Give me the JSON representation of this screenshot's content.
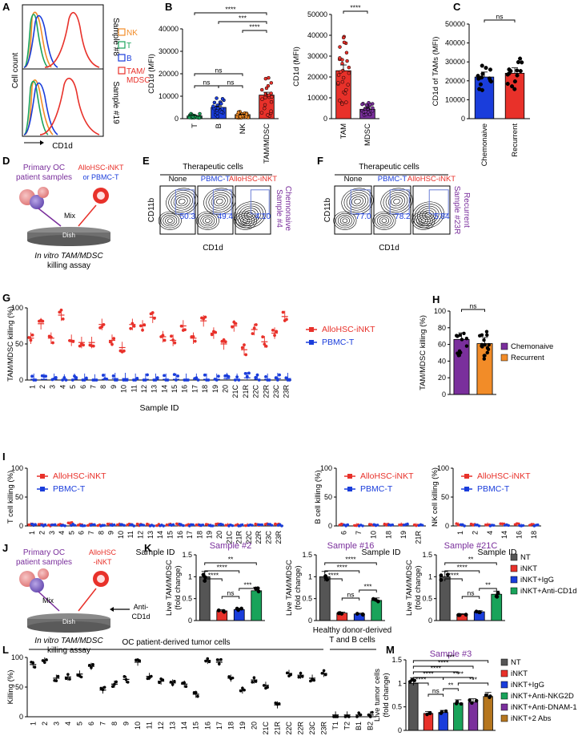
{
  "colors": {
    "red": "#e8312a",
    "blue": "#1a3ddb",
    "green": "#19a35a",
    "orange": "#f28c28",
    "gray": "#555555",
    "purple": "#7a2f9c",
    "brown": "#b5761f",
    "dark": "#333333"
  },
  "chart_data": [
    {
      "id": "A",
      "type": "histogram-overlay",
      "panel_label": "A",
      "xlabel": "CD1d",
      "ylabel": "Cell count",
      "sample_labels": [
        "Sample #8",
        "Sample #19"
      ],
      "legend": [
        {
          "label": "NK",
          "color": "#f28c28"
        },
        {
          "label": "T",
          "color": "#19a35a"
        },
        {
          "label": "B",
          "color": "#1a3ddb"
        },
        {
          "label": "TAM/",
          "label2": "MDSC",
          "color": "#e8312a"
        }
      ]
    },
    {
      "id": "B1",
      "type": "bar",
      "panel_label": "B",
      "ylabel": "CD1d (MFI)",
      "ylim": [
        0,
        40000
      ],
      "yticks": [
        0,
        10000,
        20000,
        30000,
        40000
      ],
      "categories": [
        "T",
        "B",
        "NK",
        "TAM/MDSC"
      ],
      "values": [
        1200,
        5000,
        1800,
        10500
      ],
      "bar_colors": [
        "#19a35a",
        "#1a3ddb",
        "#f28c28",
        "#e8312a"
      ],
      "significance": [
        {
          "from": "T",
          "to": "B",
          "label": "ns"
        },
        {
          "from": "B",
          "to": "NK",
          "label": "ns"
        },
        {
          "from": "T",
          "to": "NK",
          "label": "ns"
        },
        {
          "from": "NK",
          "to": "TAM/MDSC",
          "label": "****"
        },
        {
          "from": "B",
          "to": "TAM/MDSC",
          "label": "***"
        },
        {
          "from": "T",
          "to": "TAM/MDSC",
          "label": "****"
        }
      ]
    },
    {
      "id": "B2",
      "type": "bar",
      "ylabel": "CD1d (MFI)",
      "ylim": [
        0,
        50000
      ],
      "yticks": [
        0,
        10000,
        20000,
        30000,
        40000,
        50000
      ],
      "categories": [
        "TAM",
        "MDSC"
      ],
      "values": [
        23000,
        4500
      ],
      "bar_colors": [
        "#e8312a",
        "#7a2f9c"
      ],
      "significance": [
        {
          "from": "TAM",
          "to": "MDSC",
          "label": "****"
        }
      ]
    },
    {
      "id": "C",
      "type": "bar",
      "panel_label": "C",
      "ylabel": "CD1d of TAMs (MFI)",
      "ylim": [
        0,
        50000
      ],
      "yticks": [
        0,
        10000,
        20000,
        30000,
        40000,
        50000
      ],
      "categories": [
        "Chemonaive",
        "Recurrent"
      ],
      "values": [
        22000,
        24000
      ],
      "bar_colors": [
        "#1a3ddb",
        "#e8312a"
      ],
      "significance": [
        {
          "from": "Chemonaive",
          "to": "Recurrent",
          "label": "ns"
        }
      ]
    },
    {
      "id": "G",
      "type": "scatter",
      "panel_label": "G",
      "ylabel": "TAM/MDSC killing (%)",
      "xlabel": "Sample ID",
      "ylim": [
        0,
        100
      ],
      "yticks": [
        0,
        50,
        100
      ],
      "categories": [
        "1",
        "2",
        "3",
        "4",
        "5",
        "6",
        "7",
        "8",
        "9",
        "10",
        "11",
        "12",
        "13",
        "14",
        "15",
        "16",
        "17",
        "18",
        "19",
        "20",
        "21C",
        "21R",
        "22C",
        "22R",
        "23C",
        "23R"
      ],
      "series": [
        {
          "name": "AlloHSC-iNKT",
          "color": "#e8312a",
          "values": [
            58,
            78,
            58,
            90,
            55,
            52,
            52,
            77,
            55,
            45,
            77,
            75,
            87,
            60,
            55,
            75,
            58,
            82,
            65,
            50,
            75,
            42,
            70,
            53,
            65,
            88
          ]
        },
        {
          "name": "PBMC-T",
          "color": "#1a3ddb",
          "values": [
            1,
            1,
            1,
            0,
            1,
            1,
            0,
            1,
            2,
            2,
            1,
            1,
            1,
            1,
            1,
            1,
            1,
            1,
            1,
            2,
            1,
            3,
            1,
            1,
            2,
            2
          ]
        }
      ]
    },
    {
      "id": "H",
      "type": "bar",
      "panel_label": "H",
      "ylabel": "TAM/MDSC killing (%)",
      "ylim": [
        0,
        100
      ],
      "yticks": [
        0,
        20,
        40,
        60,
        80,
        100
      ],
      "categories": [
        "Chemonaive",
        "Recurrent"
      ],
      "values": [
        66,
        61
      ],
      "bar_colors": [
        "#7a2f9c",
        "#f28c28"
      ],
      "legend": [
        "Chemonaive",
        "Recurrent"
      ],
      "significance": [
        {
          "from": "Chemonaive",
          "to": "Recurrent",
          "label": "ns"
        }
      ]
    },
    {
      "id": "I1",
      "type": "scatter",
      "panel_label": "I",
      "ylabel": "T cell killing (%)",
      "xlabel": "Sample ID",
      "ylim": [
        0,
        100
      ],
      "yticks": [
        0,
        50,
        100
      ],
      "categories": [
        "1",
        "2",
        "3",
        "4",
        "5",
        "6",
        "7",
        "8",
        "9",
        "10",
        "11",
        "12",
        "13",
        "14",
        "15",
        "16",
        "17",
        "18",
        "19",
        "20",
        "21C",
        "21R",
        "22C",
        "22R",
        "23C",
        "23R"
      ],
      "series": [
        {
          "name": "AlloHSC-iNKT",
          "color": "#e8312a",
          "values": [
            3,
            2,
            1,
            2,
            5,
            2,
            2,
            1,
            3,
            3,
            2,
            2,
            2,
            2,
            2,
            3,
            2,
            2,
            2,
            3,
            2,
            2,
            2,
            2,
            3,
            2
          ]
        },
        {
          "name": "PBMC-T",
          "color": "#1a3ddb",
          "values": [
            2,
            1,
            1,
            1,
            2,
            1,
            1,
            1,
            2,
            2,
            1,
            1,
            1,
            1,
            1,
            2,
            1,
            1,
            1,
            2,
            1,
            1,
            1,
            1,
            2,
            1
          ]
        }
      ]
    },
    {
      "id": "I2",
      "type": "scatter",
      "ylabel": "B cell killing (%)",
      "xlabel": "Sample ID",
      "ylim": [
        0,
        100
      ],
      "yticks": [
        0,
        50,
        100
      ],
      "categories": [
        "6",
        "7",
        "10",
        "18",
        "19",
        "21R"
      ],
      "series": [
        {
          "name": "AlloHSC-iNKT",
          "color": "#e8312a",
          "values": [
            2,
            2,
            2,
            2,
            3,
            2
          ]
        },
        {
          "name": "PBMC-T",
          "color": "#1a3ddb",
          "values": [
            1,
            1,
            1,
            1,
            2,
            1
          ]
        }
      ]
    },
    {
      "id": "I3",
      "type": "scatter",
      "ylabel": "NK cell killing (%)",
      "xlabel": "Sample ID",
      "ylim": [
        0,
        100
      ],
      "yticks": [
        0,
        50,
        100
      ],
      "categories": [
        "1",
        "2",
        "4",
        "14",
        "16",
        "18"
      ],
      "series": [
        {
          "name": "AlloHSC-iNKT",
          "color": "#e8312a",
          "values": [
            3,
            2,
            3,
            3,
            3,
            2
          ]
        },
        {
          "name": "PBMC-T",
          "color": "#1a3ddb",
          "values": [
            1,
            1,
            1,
            1,
            1,
            1
          ]
        }
      ]
    },
    {
      "id": "K1",
      "type": "bar",
      "panel_label": "K",
      "title": "Sample #2",
      "ylabel": "Live TAM/MDSC",
      "ylabel2": "(fold change)",
      "ylim": [
        0,
        1.5
      ],
      "yticks": [
        0.0,
        0.5,
        1.0,
        1.5
      ],
      "categories": [
        "NT",
        "iNKT",
        "iNKT+IgG",
        "iNKT+Anti-CD1d"
      ],
      "values": [
        1.0,
        0.22,
        0.25,
        0.68
      ],
      "bar_colors": [
        "#555555",
        "#e8312a",
        "#1a3ddb",
        "#19a35a"
      ],
      "significance": [
        {
          "from": "NT",
          "to": "iNKT",
          "label": "****"
        },
        {
          "from": "NT",
          "to": "iNKT+IgG",
          "label": "****"
        },
        {
          "from": "NT",
          "to": "iNKT+Anti-CD1d",
          "label": "**"
        },
        {
          "from": "iNKT",
          "to": "iNKT+IgG",
          "label": "ns"
        },
        {
          "from": "iNKT+IgG",
          "to": "iNKT+Anti-CD1d",
          "label": "***"
        }
      ]
    },
    {
      "id": "K2",
      "type": "bar",
      "title": "Sample #16",
      "ylabel": "Live TAM/MDSC",
      "ylabel2": "(fold change)",
      "ylim": [
        0,
        1.5
      ],
      "yticks": [
        0.0,
        0.5,
        1.0,
        1.5
      ],
      "categories": [
        "NT",
        "iNKT",
        "iNKT+IgG",
        "iNKT+Anti-CD1d"
      ],
      "values": [
        1.0,
        0.17,
        0.15,
        0.46
      ],
      "bar_colors": [
        "#555555",
        "#e8312a",
        "#1a3ddb",
        "#19a35a"
      ],
      "significance": [
        {
          "from": "NT",
          "to": "iNKT",
          "label": "****"
        },
        {
          "from": "NT",
          "to": "iNKT+IgG",
          "label": "****"
        },
        {
          "from": "NT",
          "to": "iNKT+Anti-CD1d",
          "label": "****"
        },
        {
          "from": "iNKT",
          "to": "iNKT+IgG",
          "label": "ns"
        },
        {
          "from": "iNKT+IgG",
          "to": "iNKT+Anti-CD1d",
          "label": "***"
        }
      ]
    },
    {
      "id": "K3",
      "type": "bar",
      "title": "Sample #21C",
      "ylabel": "Live TAM/MDSC",
      "ylabel2": "(fold change)",
      "ylim": [
        0,
        1.5
      ],
      "yticks": [
        0.0,
        0.5,
        1.0,
        1.5
      ],
      "categories": [
        "NT",
        "iNKT",
        "iNKT+IgG",
        "iNKT+Anti-CD1d"
      ],
      "values": [
        1.0,
        0.14,
        0.2,
        0.6
      ],
      "bar_colors": [
        "#555555",
        "#e8312a",
        "#1a3ddb",
        "#19a35a"
      ],
      "legend": [
        "NT",
        "iNKT",
        "iNKT+IgG",
        "iNKT+Anti-CD1d"
      ],
      "significance": [
        {
          "from": "NT",
          "to": "iNKT",
          "label": "****"
        },
        {
          "from": "NT",
          "to": "iNKT+IgG",
          "label": "****"
        },
        {
          "from": "NT",
          "to": "iNKT+Anti-CD1d",
          "label": "**"
        },
        {
          "from": "iNKT",
          "to": "iNKT+IgG",
          "label": "ns"
        },
        {
          "from": "iNKT+IgG",
          "to": "iNKT+Anti-CD1d",
          "label": "**"
        }
      ]
    },
    {
      "id": "L",
      "type": "scatter",
      "panel_label": "L",
      "ylabel": "Killing (%)",
      "ylim": [
        0,
        100
      ],
      "yticks": [
        0,
        50,
        100
      ],
      "group1_label": "OC patient-derived tumor cells",
      "group2_label": "Healthy donor-derived",
      "group2_label2": "T and B cells",
      "categories": [
        "1",
        "2",
        "3",
        "4",
        "5",
        "6",
        "7",
        "8",
        "9",
        "10",
        "11",
        "12",
        "13",
        "14",
        "15",
        "16",
        "17",
        "18",
        "19",
        "20",
        "21C",
        "21R",
        "22C",
        "22R",
        "23C",
        "23R",
        "T1",
        "T2",
        "B1",
        "B2"
      ],
      "values": [
        88,
        95,
        65,
        67,
        72,
        85,
        45,
        55,
        63,
        92,
        68,
        60,
        57,
        55,
        38,
        95,
        92,
        65,
        45,
        62,
        53,
        20,
        73,
        70,
        65,
        73,
        3,
        3,
        3,
        3
      ],
      "color": "#000000"
    },
    {
      "id": "M",
      "type": "bar",
      "panel_label": "M",
      "title": "Sample #3",
      "ylabel": "Live tumor cells",
      "ylabel2": "(fold change)",
      "ylim": [
        0,
        1.5
      ],
      "yticks": [
        0.0,
        0.5,
        1.0,
        1.5
      ],
      "categories": [
        "NT",
        "iNKT",
        "iNKT+IgG",
        "iNKT+Anti-NKG2D",
        "iNKT+Anti-DNAM-1",
        "iNKT+2 Abs"
      ],
      "values": [
        1.0,
        0.36,
        0.38,
        0.58,
        0.6,
        0.72
      ],
      "bar_colors": [
        "#555555",
        "#e8312a",
        "#1a3ddb",
        "#19a35a",
        "#7a2f9c",
        "#b5761f"
      ],
      "legend": [
        "NT",
        "iNKT",
        "iNKT+IgG",
        "iNKT+Anti-NKG2D",
        "iNKT+Anti-DNAM-1",
        "iNKT+2 Abs"
      ],
      "significance": [
        {
          "label": "****"
        },
        {
          "label": "****"
        },
        {
          "label": "****"
        },
        {
          "label": "****"
        },
        {
          "label": "***"
        },
        {
          "label": "ns"
        },
        {
          "label": "**"
        },
        {
          "label": "***"
        },
        {
          "label": "****"
        }
      ]
    }
  ],
  "schematic_D": {
    "panel_label": "D",
    "title1": "Primary OC",
    "title2": "patient samples",
    "cell_label1": "AlloHSC-iNKT",
    "cell_label2": "or PBMC-T",
    "mix": "Mix",
    "dish": "Dish",
    "assay1": "In vitro TAM/MDSC",
    "assay2": "killing assay"
  },
  "flow_E": {
    "panel_label": "E",
    "header": "Therapeutic cells",
    "columns": [
      "None",
      "PBMC-T",
      "AlloHSC-iNKT"
    ],
    "gate_values": [
      "50.3",
      "49.4",
      "4.10"
    ],
    "xlabel": "CD1d",
    "ylabel": "CD11b",
    "side1": "Chemonaive",
    "side2": "Sample #4"
  },
  "flow_F": {
    "panel_label": "F",
    "header": "Therapeutic cells",
    "columns": [
      "None",
      "PBMC-T",
      "AlloHSC-iNKT"
    ],
    "gate_values": [
      "77.0",
      "78.2",
      "5.84"
    ],
    "xlabel": "CD1d",
    "ylabel": "CD11b",
    "side1": "Recurrent",
    "side2": "Sample #23R"
  },
  "schematic_J": {
    "panel_label": "J",
    "title1": "Primary OC",
    "title2": "patient samples",
    "cell_label1": "AlloHSC",
    "cell_label2": "-iNKT",
    "mix": "Mix",
    "dish": "Dish",
    "antibody1": "Anti-",
    "antibody2": "CD1d",
    "assay1": "In vitro TAM/MDSC",
    "assay2": "killing assay"
  }
}
